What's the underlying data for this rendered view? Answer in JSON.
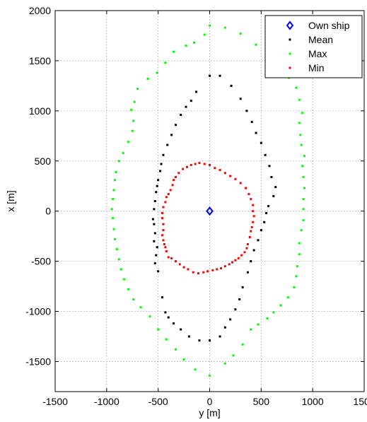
{
  "chart_data": {
    "type": "scatter",
    "xlabel": "y [m]",
    "ylabel": "x [m]",
    "xlim": [
      -1500,
      1500
    ],
    "ylim": [
      -1800,
      2000
    ],
    "xticks": [
      -1500,
      -1000,
      -500,
      0,
      500,
      1000,
      1500
    ],
    "yticks": [
      -1500,
      -1000,
      -500,
      0,
      500,
      1000,
      1500,
      2000
    ],
    "grid": true,
    "legend_position": "top-right",
    "series": [
      {
        "name": "Own ship",
        "color": "#0000ff",
        "marker": "diamond",
        "points": [
          [
            0,
            0
          ]
        ]
      },
      {
        "name": "Mean",
        "color": "#000000",
        "marker": "dot",
        "points": [
          [
            0,
            1350
          ],
          [
            100,
            1350
          ],
          [
            210,
            1250
          ],
          [
            300,
            1120
          ],
          [
            360,
            1000
          ],
          [
            410,
            890
          ],
          [
            450,
            780
          ],
          [
            500,
            680
          ],
          [
            540,
            560
          ],
          [
            580,
            450
          ],
          [
            600,
            340
          ],
          [
            640,
            240
          ],
          [
            620,
            150
          ],
          [
            570,
            50
          ],
          [
            550,
            -20
          ],
          [
            530,
            -110
          ],
          [
            500,
            -190
          ],
          [
            470,
            -290
          ],
          [
            430,
            -390
          ],
          [
            400,
            -500
          ],
          [
            370,
            -610
          ],
          [
            320,
            -760
          ],
          [
            290,
            -880
          ],
          [
            250,
            -980
          ],
          [
            200,
            -1080
          ],
          [
            150,
            -1160
          ],
          [
            100,
            -1250
          ],
          [
            0,
            -1290
          ],
          [
            -100,
            -1290
          ],
          [
            -200,
            -1250
          ],
          [
            -280,
            -1180
          ],
          [
            -350,
            -1120
          ],
          [
            -400,
            -1060
          ],
          [
            -430,
            -1010
          ],
          [
            -460,
            -860
          ],
          [
            -500,
            -600
          ],
          [
            -530,
            -520
          ],
          [
            -520,
            -440
          ],
          [
            -510,
            -360
          ],
          [
            -540,
            -300
          ],
          [
            -530,
            -220
          ],
          [
            -540,
            -130
          ],
          [
            -550,
            -80
          ],
          [
            -540,
            20
          ],
          [
            -530,
            100
          ],
          [
            -520,
            190
          ],
          [
            -510,
            250
          ],
          [
            -500,
            310
          ],
          [
            -480,
            400
          ],
          [
            -470,
            470
          ],
          [
            -450,
            560
          ],
          [
            -410,
            660
          ],
          [
            -370,
            760
          ],
          [
            -330,
            860
          ],
          [
            -280,
            960
          ],
          [
            -230,
            1040
          ],
          [
            -180,
            1100
          ],
          [
            -130,
            1190
          ]
        ]
      },
      {
        "name": "Max",
        "color": "#00ff00",
        "marker": "dot",
        "points": [
          [
            0,
            1850
          ],
          [
            150,
            1830
          ],
          [
            300,
            1770
          ],
          [
            450,
            1660
          ],
          [
            560,
            1560
          ],
          [
            690,
            1420
          ],
          [
            770,
            1330
          ],
          [
            840,
            1230
          ],
          [
            870,
            1110
          ],
          [
            900,
            980
          ],
          [
            870,
            880
          ],
          [
            880,
            760
          ],
          [
            890,
            660
          ],
          [
            920,
            550
          ],
          [
            900,
            450
          ],
          [
            910,
            340
          ],
          [
            920,
            230
          ],
          [
            910,
            120
          ],
          [
            910,
            20
          ],
          [
            910,
            -90
          ],
          [
            890,
            -190
          ],
          [
            870,
            -320
          ],
          [
            870,
            -430
          ],
          [
            850,
            -550
          ],
          [
            840,
            -650
          ],
          [
            820,
            -760
          ],
          [
            760,
            -860
          ],
          [
            690,
            -940
          ],
          [
            620,
            -1010
          ],
          [
            560,
            -1070
          ],
          [
            470,
            -1130
          ],
          [
            400,
            -1180
          ],
          [
            320,
            -1330
          ],
          [
            230,
            -1440
          ],
          [
            150,
            -1520
          ],
          [
            0,
            -1640
          ],
          [
            -140,
            -1580
          ],
          [
            -250,
            -1480
          ],
          [
            -330,
            -1380
          ],
          [
            -420,
            -1280
          ],
          [
            -500,
            -1180
          ],
          [
            -580,
            -1050
          ],
          [
            -670,
            -960
          ],
          [
            -740,
            -880
          ],
          [
            -790,
            -780
          ],
          [
            -830,
            -680
          ],
          [
            -860,
            -580
          ],
          [
            -880,
            -480
          ],
          [
            -900,
            -380
          ],
          [
            -920,
            -280
          ],
          [
            -930,
            -180
          ],
          [
            -940,
            -70
          ],
          [
            -950,
            20
          ],
          [
            -940,
            120
          ],
          [
            -930,
            210
          ],
          [
            -920,
            310
          ],
          [
            -910,
            390
          ],
          [
            -880,
            500
          ],
          [
            -840,
            580
          ],
          [
            -790,
            690
          ],
          [
            -750,
            800
          ],
          [
            -740,
            900
          ],
          [
            -760,
            1010
          ],
          [
            -730,
            1090
          ],
          [
            -700,
            1220
          ],
          [
            -600,
            1320
          ],
          [
            -510,
            1380
          ],
          [
            -430,
            1480
          ],
          [
            -350,
            1590
          ],
          [
            -230,
            1650
          ],
          [
            -150,
            1680
          ],
          [
            -50,
            1760
          ]
        ]
      },
      {
        "name": "Min",
        "color": "#ff0000",
        "marker": "dot",
        "points": [
          [
            -100,
            480
          ],
          [
            -50,
            470
          ],
          [
            0,
            460
          ],
          [
            50,
            430
          ],
          [
            100,
            410
          ],
          [
            150,
            380
          ],
          [
            200,
            350
          ],
          [
            250,
            320
          ],
          [
            300,
            280
          ],
          [
            350,
            230
          ],
          [
            380,
            170
          ],
          [
            400,
            120
          ],
          [
            420,
            60
          ],
          [
            420,
            0
          ],
          [
            430,
            -50
          ],
          [
            420,
            -110
          ],
          [
            410,
            -160
          ],
          [
            400,
            -200
          ],
          [
            390,
            -260
          ],
          [
            370,
            -330
          ],
          [
            360,
            -370
          ],
          [
            340,
            -410
          ],
          [
            310,
            -440
          ],
          [
            280,
            -470
          ],
          [
            250,
            -490
          ],
          [
            220,
            -510
          ],
          [
            190,
            -530
          ],
          [
            150,
            -550
          ],
          [
            110,
            -570
          ],
          [
            70,
            -580
          ],
          [
            30,
            -590
          ],
          [
            -20,
            -600
          ],
          [
            -60,
            -610
          ],
          [
            -110,
            -620
          ],
          [
            -160,
            -610
          ],
          [
            -210,
            -580
          ],
          [
            -250,
            -560
          ],
          [
            -290,
            -530
          ],
          [
            -330,
            -500
          ],
          [
            -370,
            -470
          ],
          [
            -400,
            -460
          ],
          [
            -420,
            -400
          ],
          [
            -430,
            -360
          ],
          [
            -440,
            -330
          ],
          [
            -450,
            -290
          ],
          [
            -460,
            -240
          ],
          [
            -450,
            -190
          ],
          [
            -450,
            -130
          ],
          [
            -460,
            -70
          ],
          [
            -460,
            -20
          ],
          [
            -450,
            40
          ],
          [
            -430,
            90
          ],
          [
            -420,
            140
          ],
          [
            -400,
            170
          ],
          [
            -380,
            210
          ],
          [
            -360,
            260
          ],
          [
            -350,
            310
          ],
          [
            -330,
            340
          ],
          [
            -300,
            380
          ],
          [
            -260,
            420
          ],
          [
            -220,
            440
          ],
          [
            -180,
            460
          ],
          [
            -140,
            470
          ]
        ]
      }
    ]
  }
}
